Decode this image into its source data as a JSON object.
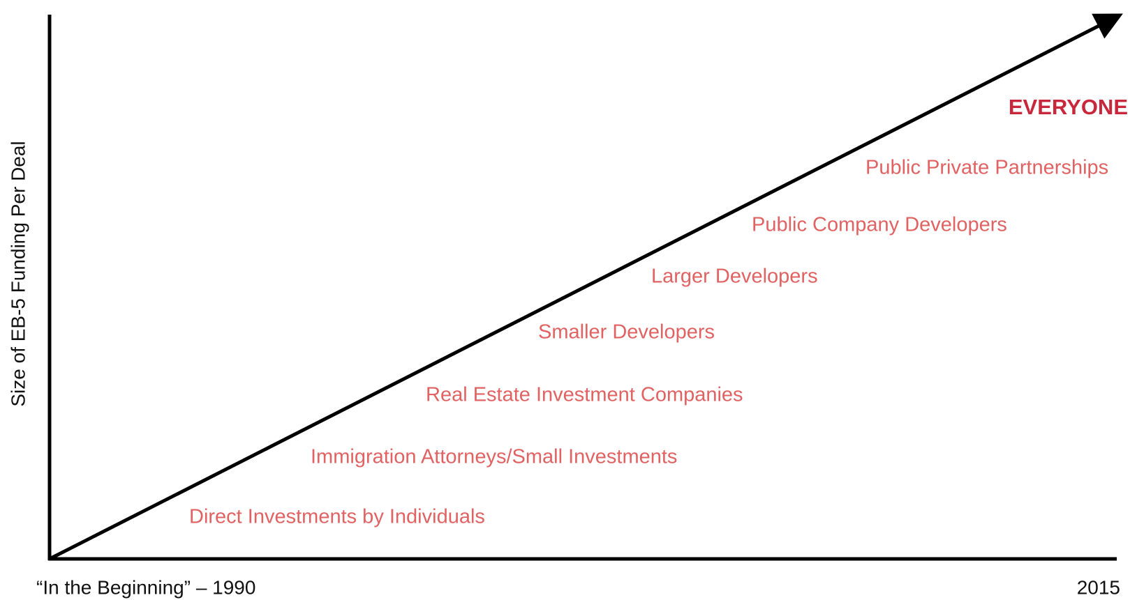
{
  "y_axis_label": "Size of EB-5 Funding Per Deal",
  "x_axis_start_label": "“In the Beginning” – 1990",
  "x_axis_end_label": "2015",
  "highlight": "EVERYONE",
  "stages": [
    "Public Private Partnerships",
    "Public Company Developers",
    "Larger Developers",
    "Smaller Developers",
    "Real Estate Investment Companies",
    "Immigration Attorneys/Small Investments",
    "Direct Investments by Individuals"
  ]
}
